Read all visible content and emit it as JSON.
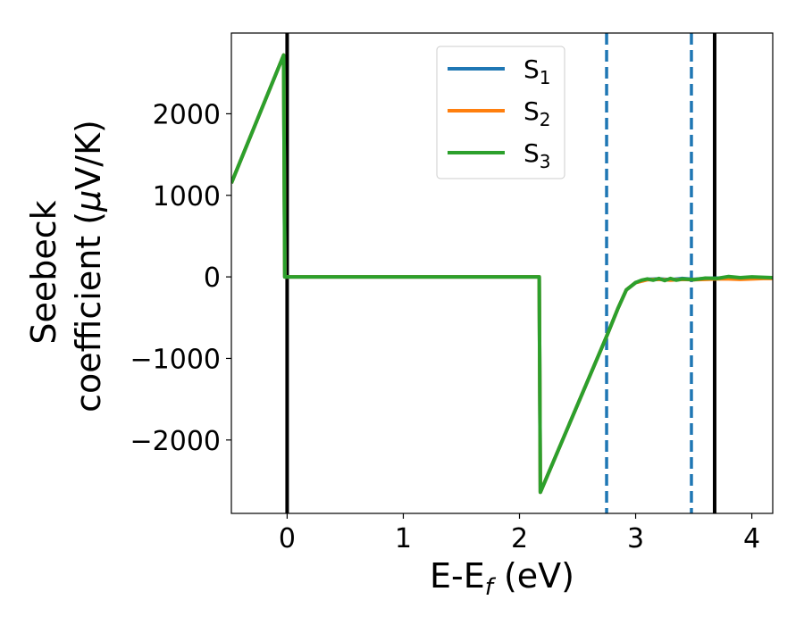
{
  "chart_data": {
    "type": "line",
    "xlabel": {
      "main": "E-E",
      "sub": "f",
      "unit": " (eV)"
    },
    "ylabel": {
      "line1": "Seebeck",
      "line2": "coefficient  (",
      "mu": "μ",
      "unit": "V/K)"
    },
    "xlim": [
      -0.48,
      4.18
    ],
    "ylim": [
      -2900,
      2990
    ],
    "xticks": [
      0,
      1,
      2,
      3,
      4
    ],
    "xtick_labels": [
      "0",
      "1",
      "2",
      "3",
      "4"
    ],
    "yticks": [
      -2000,
      -1000,
      0,
      1000,
      2000
    ],
    "ytick_labels": [
      "−2000",
      "−1000",
      "0",
      "1000",
      "2000"
    ],
    "grid": false,
    "legend_position": "upper center",
    "series": [
      {
        "name": "S",
        "sub": "1",
        "color": "#1f77b4",
        "x": [
          -0.48,
          -0.03,
          -0.02,
          2.17,
          2.18,
          2.75,
          2.85,
          2.92,
          3.0,
          3.1,
          3.2,
          3.3,
          3.4,
          3.5,
          3.6,
          3.7,
          3.8,
          3.9,
          4.0,
          4.1,
          4.18
        ],
        "y": [
          1150,
          2720,
          0,
          0,
          -2640,
          -730,
          -380,
          -160,
          -70,
          -30,
          -25,
          -35,
          -20,
          -30,
          -20,
          -15,
          -15,
          -10,
          -15,
          -10,
          -10
        ]
      },
      {
        "name": "S",
        "sub": "2",
        "color": "#ff7f0e",
        "x": [
          -0.48,
          -0.03,
          -0.02,
          2.17,
          2.18,
          2.75,
          2.85,
          2.92,
          3.0,
          3.1,
          3.2,
          3.3,
          3.4,
          3.5,
          3.6,
          3.7,
          3.8,
          3.9,
          4.0,
          4.1,
          4.18
        ],
        "y": [
          1150,
          2720,
          0,
          0,
          -2640,
          -730,
          -380,
          -160,
          -70,
          -35,
          -30,
          -40,
          -30,
          -35,
          -30,
          -25,
          -25,
          -30,
          -25,
          -20,
          -20
        ]
      },
      {
        "name": "S",
        "sub": "3",
        "color": "#2ca02c",
        "x": [
          -0.48,
          -0.03,
          -0.02,
          2.17,
          2.18,
          2.75,
          2.85,
          2.92,
          3.0,
          3.05,
          3.1,
          3.15,
          3.2,
          3.25,
          3.3,
          3.35,
          3.4,
          3.5,
          3.6,
          3.7,
          3.8,
          3.9,
          4.0,
          4.1,
          4.18
        ],
        "y": [
          1150,
          2720,
          0,
          0,
          -2640,
          -730,
          -380,
          -160,
          -70,
          -40,
          -25,
          -40,
          -20,
          -45,
          -20,
          -40,
          -25,
          -35,
          -15,
          -20,
          5,
          -10,
          0,
          -5,
          -10
        ]
      }
    ],
    "vlines": [
      {
        "x": 0.0,
        "color": "#000000",
        "style": "solid"
      },
      {
        "x": 3.68,
        "color": "#000000",
        "style": "solid"
      },
      {
        "x": 2.75,
        "color": "#1f77b4",
        "style": "dashed"
      },
      {
        "x": 3.48,
        "color": "#1f77b4",
        "style": "dashed"
      }
    ]
  }
}
